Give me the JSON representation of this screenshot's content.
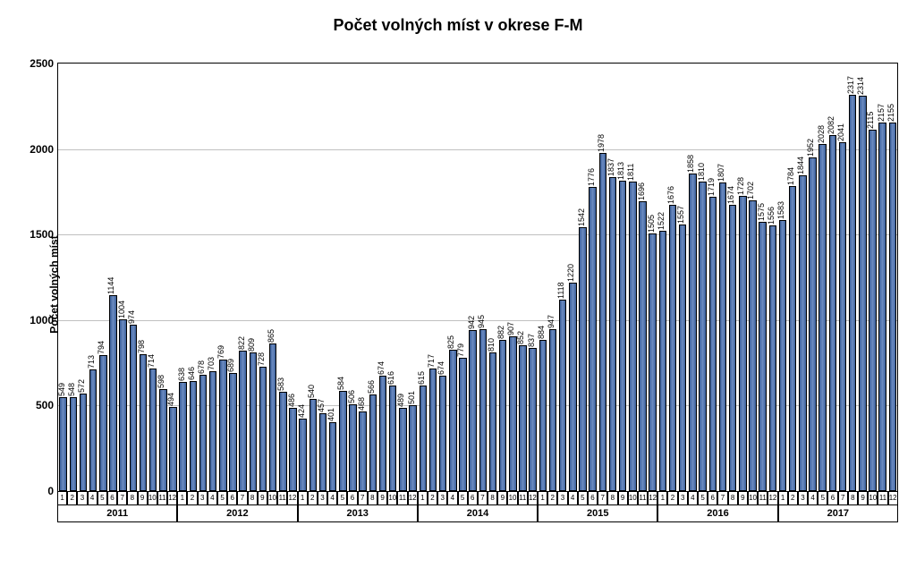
{
  "chart": {
    "type": "bar",
    "title": "Počet volných míst v okrese F-M",
    "title_fontsize": 18,
    "title_fontweight": "bold",
    "y_axis_label": "Počet volných míst",
    "y_axis_label_fontsize": 12,
    "ylim": [
      0,
      2500
    ],
    "ytick_step": 500,
    "yticks": [
      0,
      500,
      1000,
      1500,
      2000,
      2500
    ],
    "ytick_fontsize": 12,
    "bar_fill_gradient": [
      "#3a5f9a",
      "#6d8cc2",
      "#3a5f9a"
    ],
    "bar_border_color": "#000000",
    "grid_color": "#c0c0c0",
    "plot_border_color": "#000000",
    "background_color": "#ffffff",
    "value_label_fontsize": 9,
    "value_label_rotation": -90,
    "xtick_month_fontsize": 8,
    "xtick_year_fontsize": 11,
    "bar_width_ratio": 0.76,
    "years": [
      {
        "label": "2011",
        "months": [
          "1",
          "2",
          "3",
          "4",
          "5",
          "6",
          "7",
          "8",
          "9",
          "10",
          "11",
          "12"
        ],
        "values": [
          549,
          548,
          572,
          713,
          794,
          1144,
          1004,
          974,
          798,
          714,
          598,
          494
        ]
      },
      {
        "label": "2012",
        "months": [
          "1",
          "2",
          "3",
          "4",
          "5",
          "6",
          "7",
          "8",
          "9",
          "10",
          "11",
          "12"
        ],
        "values": [
          638,
          646,
          678,
          703,
          769,
          689,
          822,
          809,
          728,
          865,
          583,
          486
        ]
      },
      {
        "label": "2013",
        "months": [
          "1",
          "2",
          "3",
          "4",
          "5",
          "6",
          "7",
          "8",
          "9",
          "10",
          "11",
          "12"
        ],
        "values": [
          424,
          540,
          457,
          401,
          584,
          506,
          468,
          566,
          674,
          616,
          489,
          501
        ]
      },
      {
        "label": "2014",
        "months": [
          "1",
          "2",
          "3",
          "4",
          "5",
          "6",
          "7",
          "8",
          "9",
          "10",
          "11",
          "12"
        ],
        "values": [
          615,
          717,
          674,
          825,
          779,
          942,
          945,
          810,
          882,
          907,
          852,
          837
        ]
      },
      {
        "label": "2015",
        "months": [
          "1",
          "2",
          "3",
          "4",
          "5",
          "6",
          "7",
          "8",
          "9",
          "10",
          "11",
          "12"
        ],
        "values": [
          884,
          947,
          1118,
          1220,
          1542,
          1776,
          1978,
          1837,
          1813,
          1811,
          1696,
          1505
        ]
      },
      {
        "label": "2016",
        "months": [
          "1",
          "2",
          "3",
          "4",
          "5",
          "6",
          "7",
          "8",
          "9",
          "10",
          "11",
          "12"
        ],
        "values": [
          1522,
          1676,
          1557,
          1858,
          1810,
          1719,
          1807,
          1674,
          1728,
          1702,
          1575,
          1556
        ]
      },
      {
        "label": "2017",
        "months": [
          "1",
          "2",
          "3",
          "4",
          "5",
          "6",
          "7",
          "8",
          "9",
          "10",
          "11",
          "12"
        ],
        "values": [
          1583,
          1784,
          1844,
          1952,
          2028,
          2082,
          2041,
          2317,
          2314,
          2115,
          2157,
          2155
        ]
      }
    ]
  }
}
